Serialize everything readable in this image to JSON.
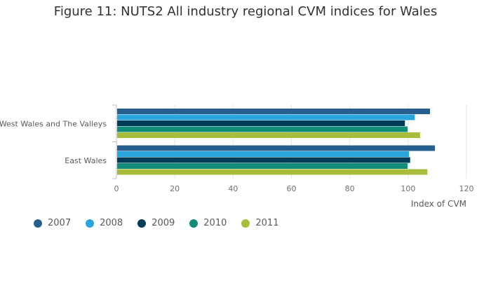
{
  "title": "Figure 11: NUTS2 All industry regional CVM indices for Wales",
  "chart_data": {
    "type": "bar",
    "orientation": "horizontal",
    "categories": [
      "West Wales and The Valleys",
      "East Wales"
    ],
    "series": [
      {
        "name": "2007",
        "color": "#27608f",
        "values": [
          107.5,
          109.2
        ]
      },
      {
        "name": "2008",
        "color": "#2aa5dc",
        "values": [
          102.3,
          100.3
        ]
      },
      {
        "name": "2009",
        "color": "#003c57",
        "values": [
          98.9,
          100.7
        ]
      },
      {
        "name": "2010",
        "color": "#118c7b",
        "values": [
          99.8,
          99.8
        ]
      },
      {
        "name": "2011",
        "color": "#a8bd3a",
        "values": [
          104.1,
          106.6
        ]
      }
    ],
    "xlabel": "Index of CVM",
    "ylabel": "",
    "xlim": [
      0,
      120
    ],
    "xticks": [
      0,
      20,
      40,
      60,
      80,
      100,
      120
    ],
    "grid": true,
    "legend_position": "bottom-left"
  }
}
